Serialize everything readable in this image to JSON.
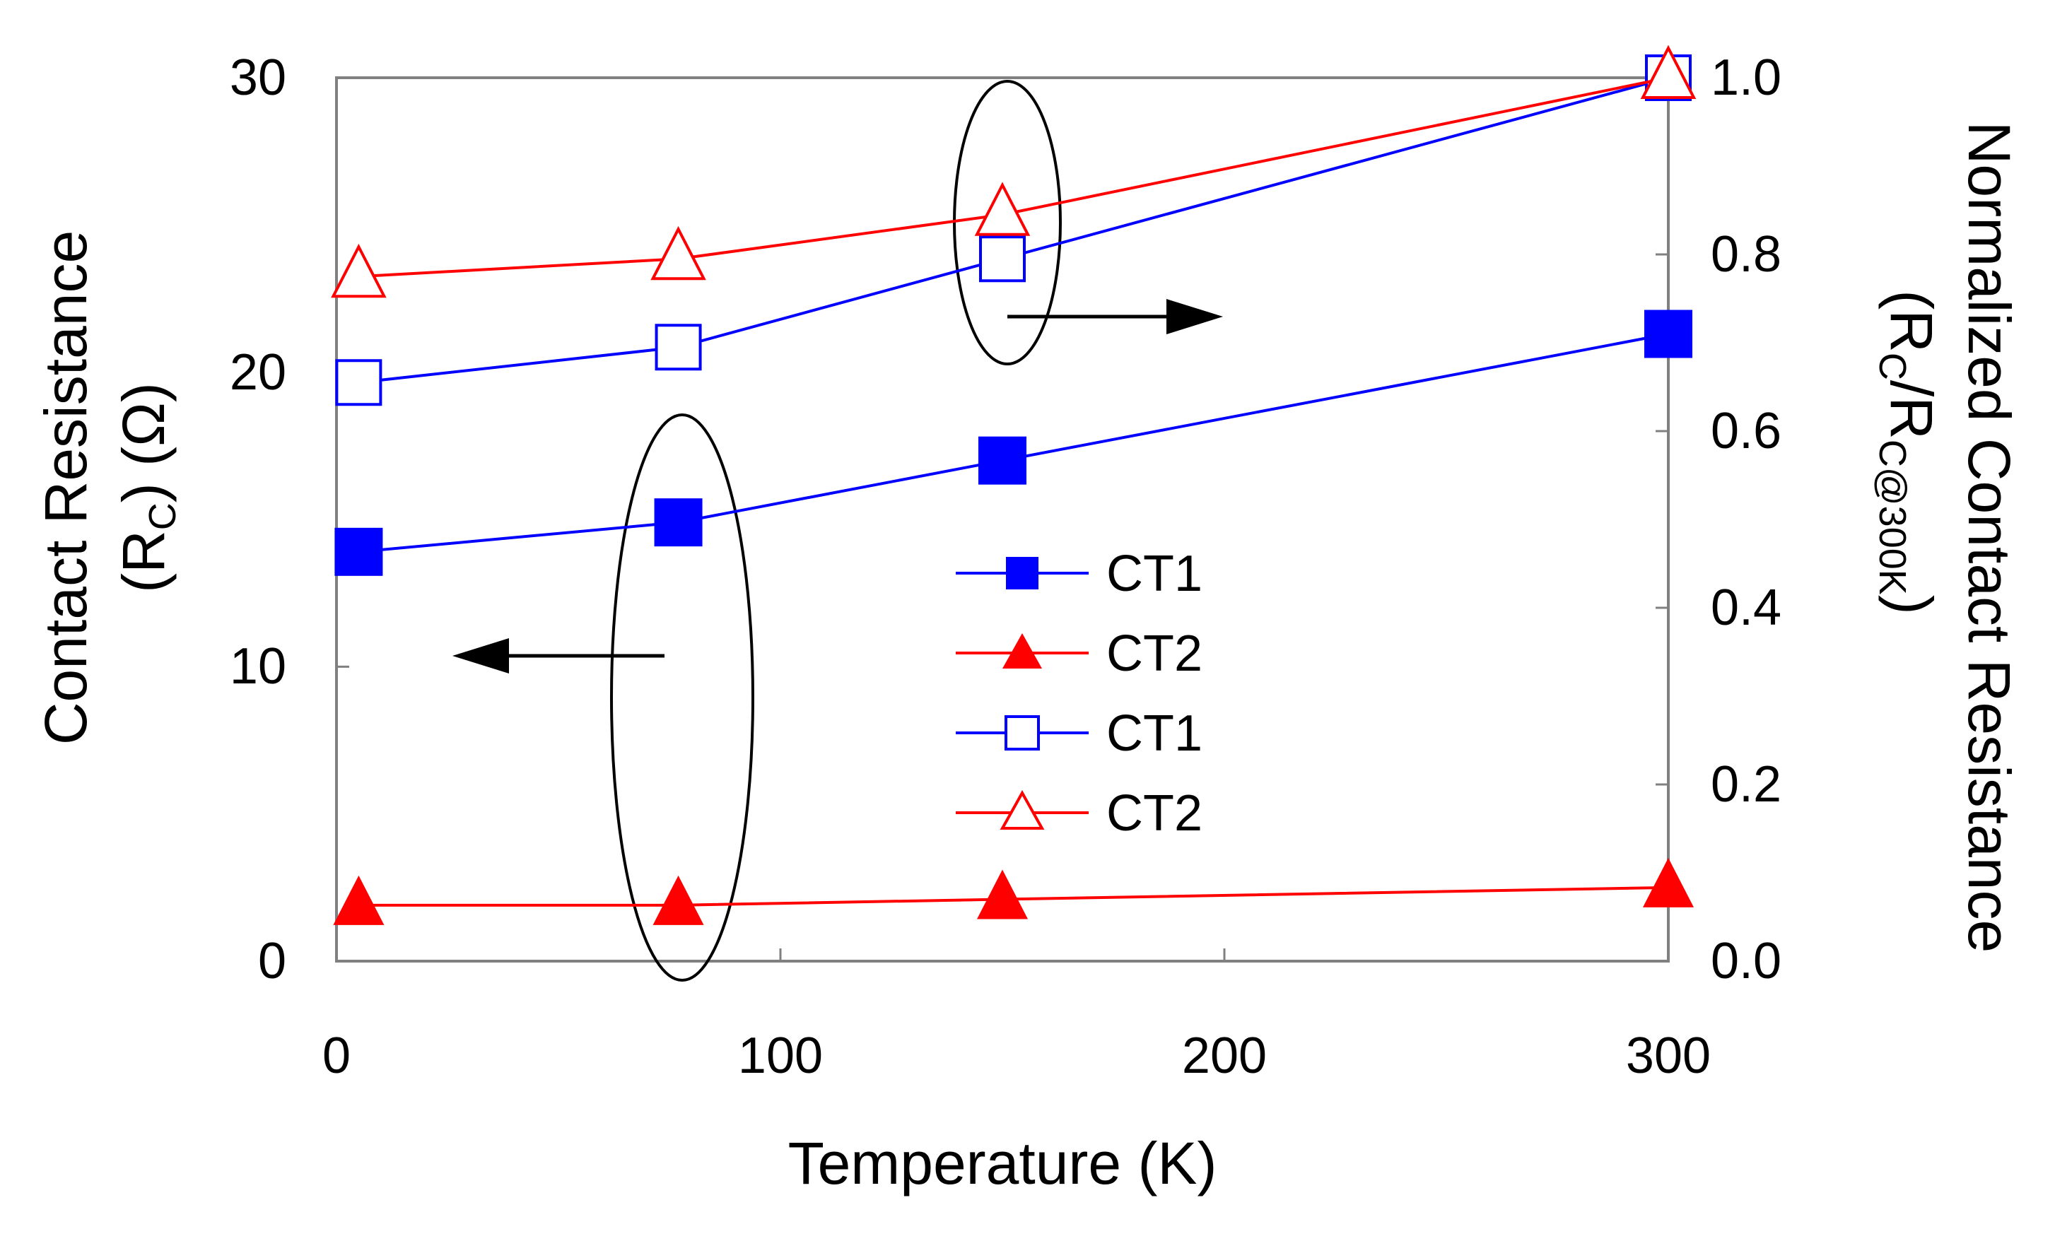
{
  "chart_data": {
    "type": "line",
    "xlabel": "Temperature (K)",
    "ylabel_left": {
      "main": "Contact Resistance",
      "sub_prefix": "(R",
      "sub_script": "C",
      "sub_suffix": ") (Ω)"
    },
    "ylabel_right": {
      "main": "Normalized Contact Resistance",
      "sub_prefix": "(R",
      "sub_script1": "C",
      "sub_mid": "/R",
      "sub_script2": "C@300K",
      "sub_suffix": ")"
    },
    "xlim": [
      0,
      300
    ],
    "ylim_left": [
      0,
      30
    ],
    "ylim_right": [
      0,
      1.0
    ],
    "x_ticks": [
      "0",
      "100",
      "200",
      "300"
    ],
    "y_ticks_left": [
      "0",
      "10",
      "20",
      "30"
    ],
    "y_ticks_right": [
      "0.0",
      "0.2",
      "0.4",
      "0.6",
      "0.8",
      "1.0"
    ],
    "grid": false,
    "legend_position": "center",
    "series": [
      {
        "name": "CT1",
        "axis": "left",
        "marker": "square-filled",
        "color": "#0000ff",
        "x": [
          5,
          77,
          150,
          300
        ],
        "y": [
          13.9,
          14.9,
          17.0,
          21.3
        ]
      },
      {
        "name": "CT2",
        "axis": "left",
        "marker": "triangle-filled",
        "color": "#ff0000",
        "x": [
          5,
          77,
          150,
          300
        ],
        "y": [
          1.9,
          1.9,
          2.1,
          2.5
        ]
      },
      {
        "name": "CT1",
        "axis": "right",
        "marker": "square-open",
        "color": "#0000ff",
        "x": [
          5,
          77,
          150,
          300
        ],
        "y": [
          0.655,
          0.695,
          0.795,
          1.0
        ]
      },
      {
        "name": "CT2",
        "axis": "right",
        "marker": "triangle-open",
        "color": "#ff0000",
        "x": [
          5,
          77,
          150,
          300
        ],
        "y": [
          0.775,
          0.795,
          0.845,
          1.0
        ]
      }
    ]
  }
}
